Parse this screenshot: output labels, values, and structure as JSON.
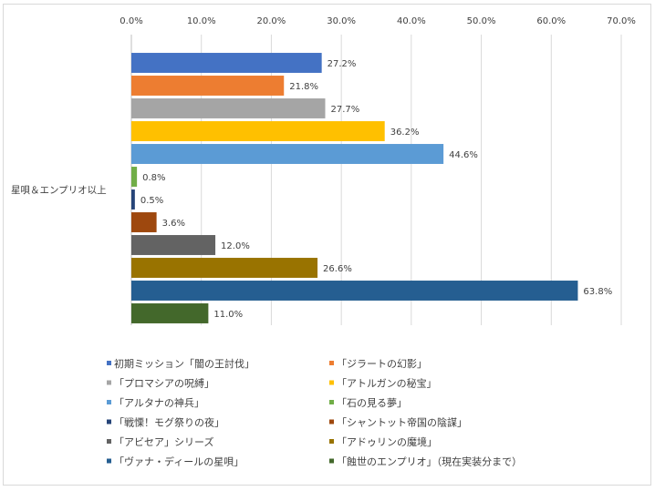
{
  "chart_data": {
    "type": "bar",
    "orientation": "horizontal",
    "categories": [
      "星唄＆エンプリオ以上"
    ],
    "xlim": [
      0,
      70
    ],
    "x_ticks": [
      "0.0%",
      "10.0%",
      "20.0%",
      "30.0%",
      "40.0%",
      "50.0%",
      "60.0%",
      "70.0%"
    ],
    "x_tick_values": [
      0,
      10,
      20,
      30,
      40,
      50,
      60,
      70
    ],
    "xaxis_position": "top",
    "grid": true,
    "legend_position": "bottom",
    "series": [
      {
        "name": "初期ミッション「闇の王討伐」",
        "value": 27.2,
        "label": "27.2%",
        "color": "#4472C4"
      },
      {
        "name": "「ジラートの幻影」",
        "value": 21.8,
        "label": "21.8%",
        "color": "#ED7D31"
      },
      {
        "name": "「プロマシアの呪縛」",
        "value": 27.7,
        "label": "27.7%",
        "color": "#A5A5A5"
      },
      {
        "name": "「アトルガンの秘宝」",
        "value": 36.2,
        "label": "36.2%",
        "color": "#FFC000"
      },
      {
        "name": "「アルタナの神兵」",
        "value": 44.6,
        "label": "44.6%",
        "color": "#5B9BD5"
      },
      {
        "name": "「石の見る夢」",
        "value": 0.8,
        "label": "0.8%",
        "color": "#70AD47"
      },
      {
        "name": "「戦慄！モグ祭りの夜」",
        "value": 0.5,
        "label": "0.5%",
        "color": "#264478"
      },
      {
        "name": "「シャントット帝国の陰謀」",
        "value": 3.6,
        "label": "3.6%",
        "color": "#9E480E"
      },
      {
        "name": "「アビセア」シリーズ",
        "value": 12.0,
        "label": "12.0%",
        "color": "#636363"
      },
      {
        "name": "「アドゥリンの魔境」",
        "value": 26.6,
        "label": "26.6%",
        "color": "#997300"
      },
      {
        "name": "「ヴァナ・ディールの星唄」",
        "value": 63.8,
        "label": "63.8%",
        "color": "#255E91"
      },
      {
        "name": "「蝕世のエンプリオ」（現在実装分まで）",
        "value": 11.0,
        "label": "11.0%",
        "color": "#43682B"
      }
    ]
  }
}
